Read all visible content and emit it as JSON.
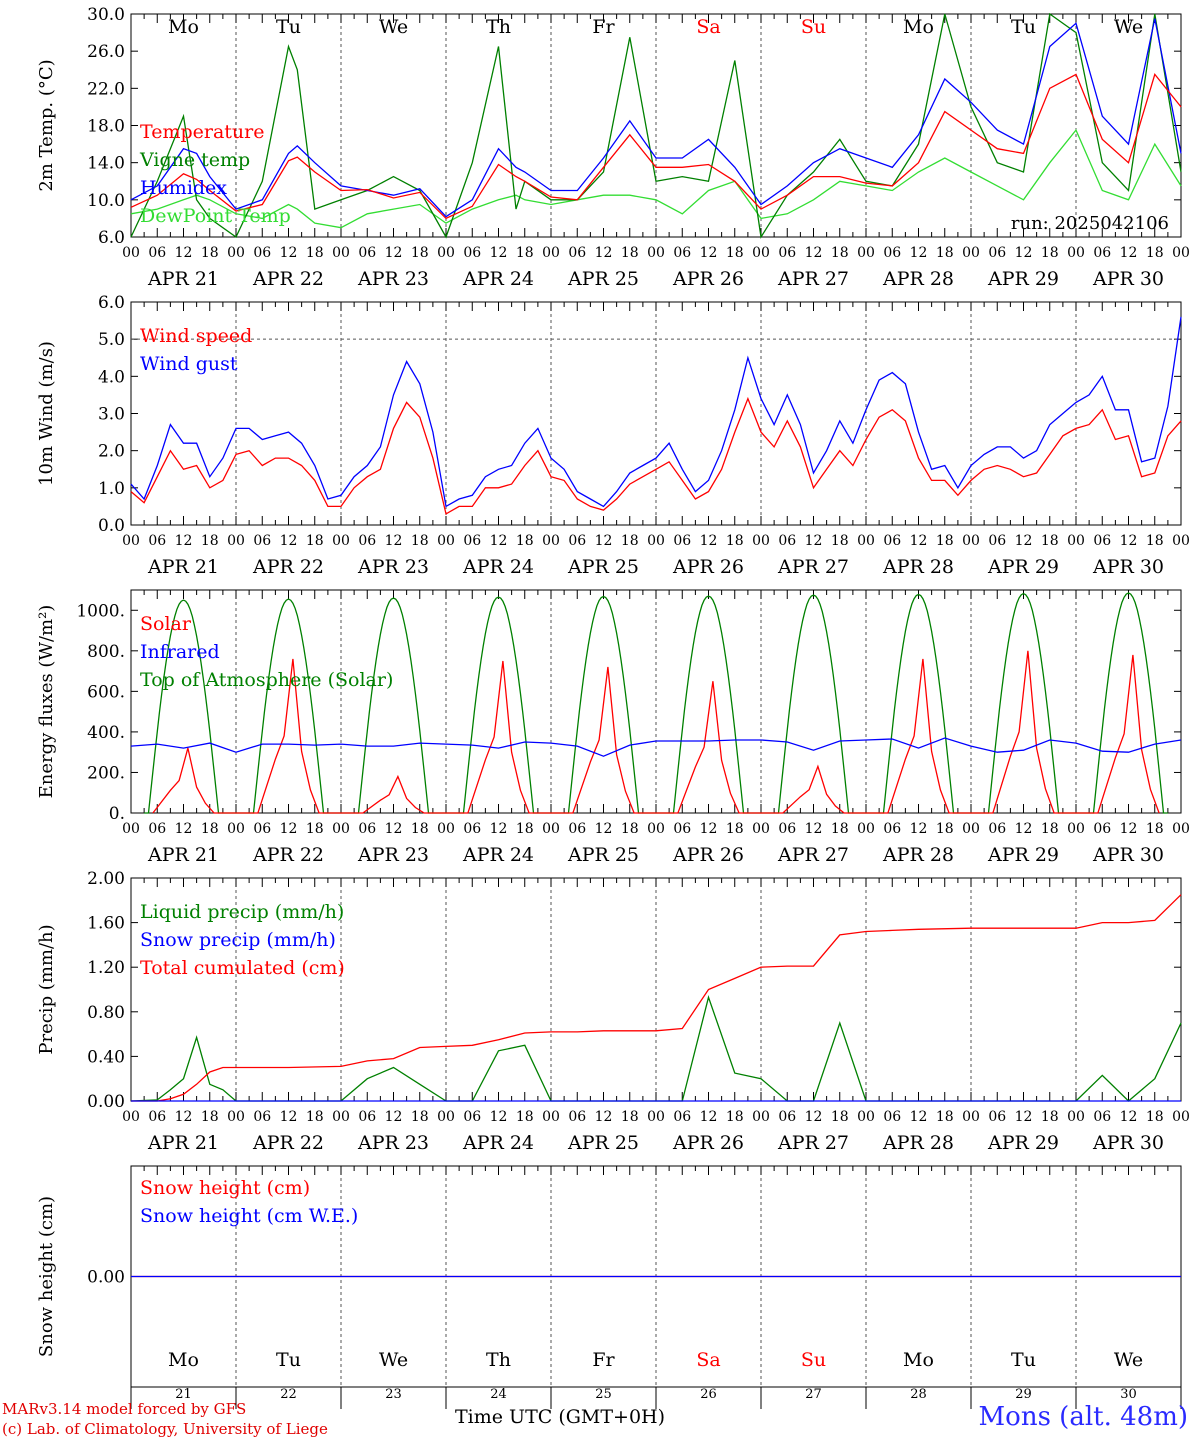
{
  "colors": {
    "temperature": "#ff0000",
    "vigne": "#008000",
    "humidex": "#0000ff",
    "dewpoint": "#33dd33",
    "weekend": "#ff0000",
    "weekday": "#000000"
  },
  "run_label": "run: 2025042106",
  "hour_ticks": [
    "00",
    "06",
    "12",
    "18"
  ],
  "days": [
    {
      "abbr": "Mo",
      "label": "APR 21",
      "num": "21",
      "weekend": false
    },
    {
      "abbr": "Tu",
      "label": "APR 22",
      "num": "22",
      "weekend": false
    },
    {
      "abbr": "We",
      "label": "APR 23",
      "num": "23",
      "weekend": false
    },
    {
      "abbr": "Th",
      "label": "APR 24",
      "num": "24",
      "weekend": false
    },
    {
      "abbr": "Fr",
      "label": "APR 25",
      "num": "25",
      "weekend": false
    },
    {
      "abbr": "Sa",
      "label": "APR 26",
      "num": "26",
      "weekend": true
    },
    {
      "abbr": "Su",
      "label": "APR 27",
      "num": "27",
      "weekend": true
    },
    {
      "abbr": "Mo",
      "label": "APR 28",
      "num": "28",
      "weekend": false
    },
    {
      "abbr": "Tu",
      "label": "APR 29",
      "num": "29",
      "weekend": false
    },
    {
      "abbr": "We",
      "label": "APR 30",
      "num": "30",
      "weekend": false
    }
  ],
  "footer": {
    "credit_line1": "MARv3.14 model forced by GFS",
    "credit_line2": "(c) Lab. of Climatology, University of Liege",
    "x_axis_label": "Time UTC (GMT+0H)",
    "station": "Mons (alt. 48m)"
  },
  "chart_data": [
    {
      "type": "line",
      "ylabel": "2m Temp. (°C)",
      "ylim": [
        6.0,
        30.0
      ],
      "yticks": [
        6.0,
        10.0,
        14.0,
        18.0,
        22.0,
        26.0,
        30.0
      ],
      "ytick_labels": [
        "6.0",
        "10.0",
        "14.0",
        "18.0",
        "22.0",
        "26.0",
        "30.0"
      ],
      "x": [
        0,
        6,
        12,
        15,
        18,
        24,
        30,
        36,
        38,
        42,
        48,
        54,
        60,
        66,
        72,
        78,
        84,
        88,
        90,
        96,
        102,
        108,
        114,
        120,
        126,
        132,
        138,
        144,
        150,
        156,
        162,
        168,
        174,
        180,
        186,
        192,
        198,
        204,
        210,
        216,
        222,
        228,
        234,
        240
      ],
      "series": [
        {
          "name": "Temperature",
          "color": "#ff0000",
          "values": [
            9.2,
            10.5,
            12.8,
            12.2,
            11.0,
            8.8,
            9.5,
            14.2,
            14.6,
            13.0,
            11.0,
            11.1,
            10.2,
            10.8,
            8.0,
            9.3,
            13.8,
            12.5,
            12.0,
            10.3,
            10.0,
            13.5,
            17.0,
            13.5,
            13.5,
            13.8,
            12.0,
            9.0,
            10.5,
            12.5,
            12.5,
            11.8,
            11.5,
            14.0,
            19.5,
            17.5,
            15.5,
            15.0,
            22.0,
            23.5,
            16.5,
            14.0,
            23.5,
            20.0
          ]
        },
        {
          "name": "Vigne temp",
          "color": "#008000",
          "values": [
            6.0,
            12.0,
            19.0,
            10.0,
            8.0,
            6.0,
            12.0,
            26.5,
            24.0,
            9.0,
            10.0,
            11.0,
            12.5,
            11.0,
            6.0,
            14.0,
            26.5,
            9.0,
            12.0,
            10.0,
            10.0,
            13.0,
            27.5,
            12.0,
            12.5,
            12.0,
            25.0,
            6.0,
            10.5,
            13.0,
            16.5,
            12.0,
            11.5,
            16.0,
            30.0,
            20.0,
            14.0,
            13.0,
            30.0,
            28.0,
            14.0,
            11.0,
            30.0,
            13.0
          ]
        },
        {
          "name": "Humidex",
          "color": "#0000ff",
          "values": [
            10.0,
            11.5,
            15.5,
            15.0,
            12.5,
            9.0,
            10.0,
            15.0,
            15.8,
            14.0,
            11.5,
            11.0,
            10.5,
            11.2,
            8.2,
            10.0,
            15.5,
            13.5,
            13.0,
            11.0,
            11.0,
            14.5,
            18.5,
            14.5,
            14.5,
            16.5,
            13.5,
            9.5,
            11.5,
            14.0,
            15.5,
            14.5,
            13.5,
            17.0,
            23.0,
            20.5,
            17.5,
            16.0,
            26.5,
            29.0,
            19.0,
            16.0,
            29.5,
            15.0
          ]
        },
        {
          "name": "DewPoint Temp",
          "color": "#33dd33",
          "values": [
            8.5,
            9.0,
            10.0,
            10.5,
            10.0,
            8.5,
            8.0,
            9.5,
            9.0,
            7.5,
            7.0,
            8.5,
            9.0,
            9.5,
            7.5,
            9.0,
            10.0,
            10.5,
            10.0,
            9.5,
            10.0,
            10.5,
            10.5,
            10.0,
            8.5,
            11.0,
            12.0,
            8.0,
            8.5,
            10.0,
            12.0,
            11.5,
            11.0,
            13.0,
            14.5,
            13.0,
            11.5,
            10.0,
            14.0,
            17.5,
            11.0,
            10.0,
            16.0,
            11.5
          ]
        }
      ]
    },
    {
      "type": "line",
      "ylabel": "10m Wind (m/s)",
      "ylim": [
        0.0,
        6.0
      ],
      "yticks": [
        0,
        1,
        2,
        3,
        4,
        5,
        6
      ],
      "ytick_labels": [
        "0.0",
        "1.0",
        "2.0",
        "3.0",
        "4.0",
        "5.0",
        "6.0"
      ],
      "ref_line": 5.0,
      "x": [
        0,
        3,
        6,
        9,
        12,
        15,
        18,
        21,
        24,
        27,
        30,
        33,
        36,
        39,
        42,
        45,
        48,
        51,
        54,
        57,
        60,
        63,
        66,
        69,
        72,
        75,
        78,
        81,
        84,
        87,
        90,
        93,
        96,
        99,
        102,
        105,
        108,
        111,
        114,
        117,
        120,
        123,
        126,
        129,
        132,
        135,
        138,
        141,
        144,
        147,
        150,
        153,
        156,
        159,
        162,
        165,
        168,
        171,
        174,
        177,
        180,
        183,
        186,
        189,
        192,
        195,
        198,
        201,
        204,
        207,
        210,
        213,
        216,
        219,
        222,
        225,
        228,
        231,
        234,
        237,
        240
      ],
      "series": [
        {
          "name": "Wind speed",
          "color": "#ff0000",
          "values": [
            0.9,
            0.6,
            1.3,
            2.0,
            1.5,
            1.6,
            1.0,
            1.2,
            1.9,
            2.0,
            1.6,
            1.8,
            1.8,
            1.6,
            1.2,
            0.5,
            0.5,
            1.0,
            1.3,
            1.5,
            2.6,
            3.3,
            2.9,
            1.8,
            0.3,
            0.5,
            0.5,
            1.0,
            1.0,
            1.1,
            1.6,
            2.0,
            1.3,
            1.2,
            0.7,
            0.5,
            0.4,
            0.7,
            1.1,
            1.3,
            1.5,
            1.7,
            1.2,
            0.7,
            0.9,
            1.5,
            2.5,
            3.4,
            2.5,
            2.1,
            2.8,
            2.1,
            1.0,
            1.5,
            2.0,
            1.6,
            2.3,
            2.9,
            3.1,
            2.8,
            1.8,
            1.2,
            1.2,
            0.8,
            1.2,
            1.5,
            1.6,
            1.5,
            1.3,
            1.4,
            1.9,
            2.4,
            2.6,
            2.7,
            3.1,
            2.3,
            2.4,
            1.3,
            1.4,
            2.4,
            2.8
          ]
        },
        {
          "name": "Wind gust",
          "color": "#0000ff",
          "values": [
            1.1,
            0.7,
            1.6,
            2.7,
            2.2,
            2.2,
            1.3,
            1.8,
            2.6,
            2.6,
            2.3,
            2.4,
            2.5,
            2.2,
            1.6,
            0.7,
            0.8,
            1.3,
            1.6,
            2.1,
            3.5,
            4.4,
            3.8,
            2.5,
            0.5,
            0.7,
            0.8,
            1.3,
            1.5,
            1.6,
            2.2,
            2.6,
            1.8,
            1.5,
            0.9,
            0.7,
            0.5,
            0.9,
            1.4,
            1.6,
            1.8,
            2.2,
            1.5,
            0.9,
            1.2,
            2.0,
            3.1,
            4.5,
            3.4,
            2.7,
            3.5,
            2.7,
            1.4,
            2.0,
            2.8,
            2.2,
            3.1,
            3.9,
            4.1,
            3.8,
            2.5,
            1.5,
            1.6,
            1.0,
            1.6,
            1.9,
            2.1,
            2.1,
            1.8,
            2.0,
            2.7,
            3.0,
            3.3,
            3.5,
            4.0,
            3.1,
            3.1,
            1.7,
            1.8,
            3.2,
            5.6
          ]
        }
      ]
    },
    {
      "type": "line",
      "ylabel": "Energy fluxes (W/m²)",
      "ylim": [
        0,
        1100
      ],
      "yticks": [
        0,
        200,
        400,
        600,
        800,
        1000
      ],
      "ytick_labels": [
        "0.",
        "200.",
        "400.",
        "600.",
        "800.",
        "1000."
      ],
      "series": [
        {
          "name": "Solar",
          "color": "#ff0000",
          "peaks": [
            320,
            760,
            180,
            750,
            720,
            650,
            230,
            760,
            800,
            780
          ]
        },
        {
          "name": "Infrared",
          "color": "#0000ff",
          "values": [
            330,
            340,
            320,
            345,
            300,
            340,
            340,
            335,
            340,
            330,
            330,
            345,
            340,
            335,
            320,
            350,
            345,
            330,
            280,
            335,
            355,
            355,
            355,
            360,
            360,
            350,
            310,
            355,
            360,
            365,
            320,
            370,
            330,
            300,
            310,
            360,
            345,
            305,
            300,
            340,
            360
          ]
        },
        {
          "name": "Top of Atmosphere (Solar)",
          "color": "#008000",
          "peaks": [
            1050,
            1055,
            1060,
            1065,
            1068,
            1070,
            1075,
            1078,
            1082,
            1085
          ]
        }
      ]
    },
    {
      "type": "line",
      "ylabel": "Precip (mm/h)",
      "ylim": [
        0.0,
        2.0
      ],
      "yticks": [
        0.0,
        0.4,
        0.8,
        1.2,
        1.6,
        2.0
      ],
      "ytick_labels": [
        "0.00",
        "0.40",
        "0.80",
        "1.20",
        "1.60",
        "2.00"
      ],
      "x": [
        0,
        6,
        9,
        12,
        15,
        18,
        21,
        24,
        30,
        36,
        48,
        54,
        60,
        66,
        72,
        78,
        84,
        90,
        96,
        102,
        108,
        114,
        120,
        126,
        132,
        138,
        144,
        150,
        156,
        162,
        168,
        174,
        180,
        192,
        198,
        204,
        210,
        216,
        222,
        228,
        234,
        240
      ],
      "series": [
        {
          "name": "Liquid precip (mm/h)",
          "color": "#008000",
          "values": [
            0.0,
            0.01,
            0.1,
            0.2,
            0.57,
            0.15,
            0.1,
            0.0,
            0.0,
            0.0,
            0.0,
            0.2,
            0.3,
            0.15,
            0.0,
            0.0,
            0.45,
            0.5,
            0.0,
            0.0,
            0.0,
            0.0,
            0.0,
            0.0,
            0.93,
            0.25,
            0.2,
            0.0,
            0.0,
            0.7,
            0.0,
            0.0,
            0.0,
            0.0,
            0.0,
            0.0,
            0.0,
            0.0,
            0.23,
            0.0,
            0.2,
            0.7
          ]
        },
        {
          "name": "Snow precip (mm/h)",
          "color": "#0000ff",
          "values": [
            0.0,
            0.0,
            0.0,
            0.0,
            0.0,
            0.0,
            0.0,
            0.0,
            0.0,
            0.0,
            0.0,
            0.0,
            0.0,
            0.0,
            0.0,
            0.0,
            0.0,
            0.0,
            0.0,
            0.0,
            0.0,
            0.0,
            0.0,
            0.0,
            0.0,
            0.0,
            0.0,
            0.0,
            0.0,
            0.0,
            0.0,
            0.0,
            0.0,
            0.0,
            0.0,
            0.0,
            0.0,
            0.0,
            0.0,
            0.0,
            0.0,
            0.0
          ]
        },
        {
          "name": "Total cumulated (cm)",
          "color": "#ff0000",
          "values": [
            0.0,
            0.0,
            0.02,
            0.06,
            0.15,
            0.26,
            0.3,
            0.3,
            0.3,
            0.3,
            0.31,
            0.36,
            0.38,
            0.48,
            0.49,
            0.5,
            0.55,
            0.61,
            0.62,
            0.62,
            0.63,
            0.63,
            0.63,
            0.65,
            1.0,
            1.1,
            1.2,
            1.21,
            1.21,
            1.49,
            1.52,
            1.53,
            1.54,
            1.55,
            1.55,
            1.55,
            1.55,
            1.55,
            1.6,
            1.6,
            1.62,
            1.85
          ]
        }
      ]
    },
    {
      "type": "line",
      "ylabel": "Snow height (cm)",
      "ylim": [
        -1.0,
        1.0
      ],
      "yticks": [
        0.0
      ],
      "ytick_labels": [
        "0.00"
      ],
      "series": [
        {
          "name": "Snow height (cm)",
          "color": "#ff0000",
          "values": [
            0.0,
            0.0
          ]
        },
        {
          "name": "Snow height (cm W.E.)",
          "color": "#0000ff",
          "values": [
            0.0,
            0.0
          ]
        }
      ]
    }
  ]
}
